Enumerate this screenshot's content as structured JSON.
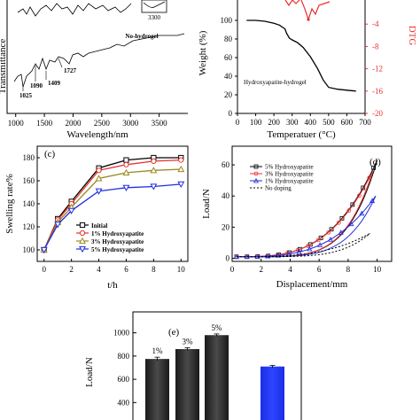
{
  "chart_data": [
    {
      "panel": "a",
      "type": "line",
      "xlabel": "Wavelength/nm",
      "ylabel": "Transmittance",
      "x_ticks": [
        "1000",
        "1500",
        "2000",
        "2500",
        "3000",
        "3500"
      ],
      "xlim": [
        850,
        4000
      ],
      "annotations": [
        "1025",
        "1090",
        "1409",
        "1727",
        "3300",
        "No-hydrogel"
      ]
    },
    {
      "panel": "b",
      "type": "line",
      "xlabel": "Temperatuer (°C)",
      "ylabel": "Weight (%)",
      "y2label": "DTG",
      "xlim": [
        0,
        700
      ],
      "ylim": [
        0,
        120
      ],
      "y2lim": [
        -20,
        0
      ],
      "x_ticks": [
        "0",
        "100",
        "200",
        "300",
        "400",
        "500",
        "600",
        "700"
      ],
      "y_ticks": [
        "0",
        "20",
        "40",
        "60",
        "80",
        "100"
      ],
      "y2_ticks": [
        "-4",
        "-8",
        "-12",
        "-16",
        "-20"
      ],
      "series": [
        {
          "name": "Hydroxyapatite-hydrogel",
          "x": [
            50,
            100,
            150,
            200,
            230,
            260,
            270,
            285,
            300,
            330,
            360,
            400,
            440,
            470,
            500,
            550,
            600,
            650
          ],
          "y": [
            100,
            100,
            99,
            97,
            95,
            91,
            86,
            81,
            79,
            76,
            71,
            61,
            48,
            36,
            28,
            26,
            25,
            24
          ]
        }
      ],
      "annotation": "Hydroxyapatite-hydrogel"
    },
    {
      "panel": "c",
      "type": "line",
      "xlabel": "t/h",
      "ylabel": "Swelling rate%",
      "xlim": [
        -0.5,
        10.5
      ],
      "ylim": [
        90,
        190
      ],
      "x_ticks": [
        "0",
        "2",
        "4",
        "6",
        "8",
        "10"
      ],
      "y_ticks": [
        "100",
        "120",
        "140",
        "160",
        "180"
      ],
      "x": [
        0,
        1,
        2,
        4,
        6,
        8,
        10
      ],
      "series": [
        {
          "name": "Initial",
          "values": [
            100,
            127,
            142,
            171,
            178,
            180,
            180
          ],
          "color": "#000000",
          "marker": "square"
        },
        {
          "name": "1% Hydroxyapatite",
          "values": [
            100,
            126,
            140,
            169,
            174,
            177,
            178
          ],
          "color": "#e8312f",
          "marker": "circle"
        },
        {
          "name": "3% Hydroxyapatite",
          "values": [
            100,
            124,
            137,
            162,
            167,
            169,
            170
          ],
          "color": "#9a8a1e",
          "marker": "triangle-up"
        },
        {
          "name": "5% Hydroxyapatite",
          "values": [
            100,
            122,
            134,
            151,
            154,
            155,
            157
          ],
          "color": "#1f2de0",
          "marker": "triangle-down"
        }
      ]
    },
    {
      "panel": "d",
      "type": "line",
      "xlabel": "Displacement/mm",
      "ylabel": "Load/N",
      "xlim": [
        0,
        11
      ],
      "ylim": [
        -2,
        72
      ],
      "x_ticks": [
        "0",
        "2",
        "4",
        "6",
        "8",
        "10"
      ],
      "y_ticks": [
        "0",
        "20",
        "40",
        "60"
      ],
      "series": [
        {
          "name": "5% Hydroxyapatite",
          "max_load": 63,
          "color": "#000000"
        },
        {
          "name": "3% Hydroxyapatite",
          "max_load": 56,
          "color": "#e8312f"
        },
        {
          "name": "1% Hydroxyapatite",
          "max_load": 40,
          "color": "#1f2de0"
        },
        {
          "name": "No doping",
          "max_load": 16,
          "color": "#000000",
          "style": "dotted"
        }
      ]
    },
    {
      "panel": "e",
      "type": "bar",
      "ylabel": "Load/N",
      "ylim": [
        250,
        1180
      ],
      "y_ticks": [
        "400",
        "600",
        "800",
        "1000",
        "1200"
      ],
      "categories": [
        "1%",
        "3%",
        "5%",
        ""
      ],
      "values": [
        775,
        860,
        980,
        710
      ],
      "errors": [
        15,
        12,
        10,
        10
      ],
      "colors": [
        "#222222",
        "#222222",
        "#222222",
        "#1a2ee8"
      ]
    }
  ]
}
